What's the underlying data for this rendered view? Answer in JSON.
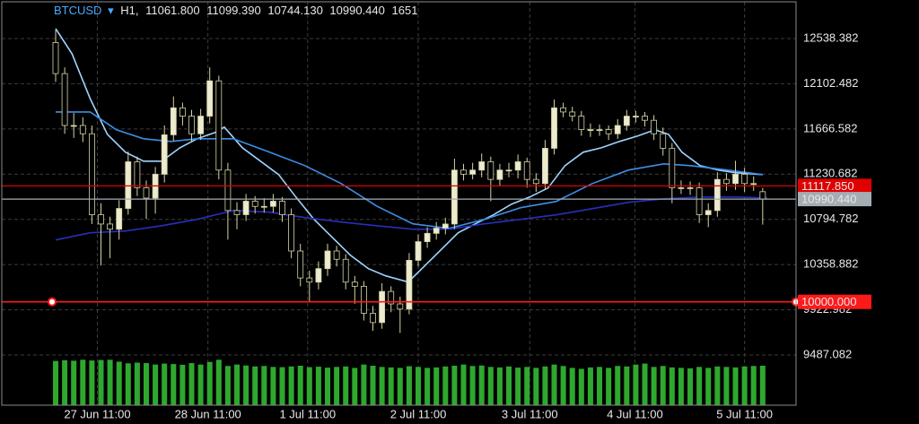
{
  "header": {
    "symbol": "BTCUSD",
    "arrow": "▾",
    "timeframe": "H1,",
    "open": "11061.800",
    "high": "11099.390",
    "low": "10744.130",
    "close": "10990.440",
    "volume": 1651
  },
  "chart_data": {
    "type": "candlestick",
    "xlim": [
      -5.94,
      81.68
    ],
    "ylim": [
      9003.7,
      12892.3
    ],
    "yticks": [
      12538.382,
      12102.482,
      11666.582,
      11230.682,
      10794.782,
      10358.882,
      9922.982,
      9487.082
    ],
    "xticks": [
      {
        "value": 4.6,
        "label": "27 Jun 11:00"
      },
      {
        "value": 16.8,
        "label": "28 Jun 11:00"
      },
      {
        "value": 27.8,
        "label": "1 Jul 11:00"
      },
      {
        "value": 40.0,
        "label": "2 Jul 11:00"
      },
      {
        "value": 52.3,
        "label": "3 Jul 11:00"
      },
      {
        "value": 63.9,
        "label": "4 Jul 11:00"
      },
      {
        "value": 76.0,
        "label": "5 Jul 11:00"
      }
    ],
    "grid": true,
    "candles": {
      "up_color": "#ecebcf",
      "down_color": "#000000",
      "outline_color": "#d6d3a6",
      "open": [
        12500,
        12200,
        11700,
        11700,
        11620,
        10840,
        10750,
        10700,
        10900,
        11350,
        11100,
        11000,
        11230,
        11610,
        11870,
        11790,
        11620,
        11790,
        12130,
        11270,
        10880,
        10840,
        10970,
        10920,
        10920,
        10970,
        10840,
        10490,
        10230,
        10190,
        10320,
        10490,
        10410,
        10190,
        10150,
        9890,
        9800,
        10100,
        9980,
        9930,
        10400,
        10580,
        10660,
        10710,
        10750,
        11270,
        11230,
        11270,
        11350,
        11180,
        11270,
        11270,
        11350,
        11180,
        11140,
        11480,
        11870,
        11830,
        11790,
        11660,
        11660,
        11660,
        11620,
        11700,
        11790,
        11790,
        11750,
        11620,
        11480,
        11100,
        11100,
        11100,
        10840,
        10880,
        11180,
        11140,
        11230,
        11140,
        11061.8
      ],
      "high": [
        12620,
        12260,
        11820,
        11780,
        11700,
        10950,
        10820,
        10980,
        11450,
        11400,
        11170,
        11300,
        11700,
        11980,
        11920,
        11850,
        11860,
        12260,
        12180,
        11340,
        10960,
        11040,
        11020,
        11000,
        11040,
        11010,
        10900,
        10560,
        10300,
        10390,
        10560,
        10540,
        10460,
        10250,
        10200,
        9960,
        10180,
        10150,
        10050,
        10470,
        10650,
        10720,
        10770,
        10810,
        11380,
        11330,
        11340,
        11430,
        11400,
        11330,
        11340,
        11420,
        11390,
        11240,
        11560,
        11950,
        11920,
        11880,
        11840,
        11720,
        11710,
        11700,
        11760,
        11850,
        11840,
        11830,
        11800,
        11680,
        11530,
        11170,
        11160,
        11150,
        10950,
        11250,
        11240,
        11360,
        11290,
        11210,
        11099.39
      ],
      "low": [
        12120,
        11620,
        11580,
        11540,
        10750,
        10350,
        10420,
        10600,
        10840,
        11020,
        10800,
        10850,
        11150,
        11550,
        11700,
        11540,
        11560,
        11720,
        11180,
        10600,
        10700,
        10780,
        10850,
        10860,
        10860,
        10770,
        10420,
        10150,
        10000,
        10120,
        10250,
        10340,
        10120,
        9980,
        9820,
        9720,
        9740,
        9900,
        9700,
        9880,
        10340,
        10520,
        10600,
        10650,
        10700,
        11170,
        11180,
        11200,
        10970,
        11120,
        11200,
        11190,
        11100,
        11060,
        11080,
        11420,
        11780,
        11740,
        11600,
        11590,
        11600,
        11560,
        11570,
        11650,
        11730,
        11690,
        11560,
        11410,
        10950,
        11040,
        11030,
        10760,
        10720,
        10820,
        11070,
        11080,
        11060,
        11070,
        10744.13
      ],
      "close": [
        12200,
        11700,
        11700,
        11620,
        10840,
        10750,
        10700,
        10900,
        11350,
        11100,
        11000,
        11230,
        11610,
        11870,
        11790,
        11620,
        11790,
        12130,
        11270,
        10880,
        10840,
        10970,
        10920,
        10920,
        10970,
        10840,
        10490,
        10230,
        10190,
        10320,
        10490,
        10410,
        10190,
        10150,
        9890,
        9800,
        10100,
        9980,
        9930,
        10400,
        10580,
        10660,
        10710,
        10750,
        11270,
        11230,
        11270,
        11350,
        11180,
        11270,
        11270,
        11350,
        11180,
        11140,
        11480,
        11870,
        11830,
        11790,
        11660,
        11660,
        11660,
        11620,
        11700,
        11790,
        11790,
        11750,
        11620,
        11480,
        11100,
        11100,
        11100,
        10840,
        10880,
        11180,
        11140,
        11230,
        11140,
        11140,
        10990.44
      ]
    },
    "moving_averages": [
      {
        "color": "#9fd4ff",
        "x": [
          0,
          1.8,
          3.8,
          5.7,
          7.7,
          9.7,
          11.7,
          13.7,
          15.6,
          17.6,
          18.6,
          20.6,
          22.6,
          24.6,
          26.5,
          28.5,
          30.5,
          32.5,
          34.5,
          36.4,
          38.9,
          40.4,
          42.4,
          44.4,
          46.3,
          48.3,
          50.3,
          52.3,
          54.3,
          56.2,
          58.2,
          60.2,
          62.2,
          64.2,
          66.1,
          67.6,
          69.1,
          71.1,
          73.1,
          75.0,
          78.0
        ],
        "values": [
          12634,
          12392,
          11960,
          11615,
          11442,
          11356,
          11356,
          11485,
          11572,
          11632,
          11684,
          11485,
          11356,
          11226,
          11010,
          10795,
          10622,
          10450,
          10320,
          10251,
          10191,
          10320,
          10493,
          10665,
          10752,
          10838,
          10942,
          11010,
          11097,
          11313,
          11442,
          11485,
          11546,
          11598,
          11658,
          11615,
          11442,
          11313,
          11270,
          11244,
          11226
        ]
      },
      {
        "color": "#3d8fe6",
        "x": [
          0,
          3.8,
          6.7,
          9.7,
          12.7,
          15.6,
          19.6,
          23.6,
          27.5,
          31.5,
          35.4,
          39.4,
          43.4,
          47.3,
          51.3,
          55.2,
          59.2,
          63.2,
          67.1,
          70.1,
          74.1,
          78.0
        ],
        "values": [
          11830,
          11830,
          11658,
          11572,
          11546,
          11572,
          11572,
          11442,
          11313,
          11140,
          10924,
          10752,
          10708,
          10795,
          10907,
          10967,
          11140,
          11270,
          11330,
          11313,
          11270,
          11226
        ]
      },
      {
        "color": "#2830b8",
        "x": [
          0,
          3.8,
          7.7,
          11.7,
          15.6,
          19.6,
          23.6,
          27.5,
          31.5,
          35.4,
          39.4,
          43.4,
          47.3,
          51.3,
          55.2,
          59.2,
          63.2,
          67.1,
          71.1,
          75.0,
          78.5
        ],
        "values": [
          10596,
          10665,
          10683,
          10734,
          10795,
          10881,
          10864,
          10812,
          10769,
          10734,
          10700,
          10700,
          10752,
          10795,
          10838,
          10898,
          10959,
          10993,
          11010,
          11010,
          11002
        ]
      }
    ],
    "volume": {
      "color": "#2ea82e",
      "ylim": [
        0,
        2100
      ],
      "values": [
        1850,
        1880,
        1860,
        1900,
        1870,
        1890,
        1900,
        1820,
        1750,
        1780,
        1760,
        1700,
        1740,
        1720,
        1690,
        1760,
        1700,
        1810,
        1900,
        1640,
        1700,
        1660,
        1620,
        1640,
        1600,
        1590,
        1620,
        1650,
        1590,
        1610,
        1570,
        1600,
        1620,
        1560,
        1700,
        1650,
        1600,
        1580,
        1560,
        1630,
        1600,
        1560,
        1580,
        1620,
        1650,
        1700,
        1640,
        1660,
        1600,
        1580,
        1620,
        1570,
        1600,
        1560,
        1620,
        1700,
        1640,
        1560,
        1520,
        1580,
        1600,
        1560,
        1640,
        1620,
        1700,
        1740,
        1600,
        1640,
        1580,
        1560,
        1540,
        1600,
        1560,
        1620,
        1600,
        1580,
        1620,
        1640,
        1651
      ]
    },
    "price_lines": [
      {
        "value": 11117.85,
        "label": "11117.850",
        "color": "#e00000",
        "text_color": "#6a0000"
      },
      {
        "value": 10990.44,
        "label": "10990.440",
        "color": "#a3adb3",
        "text_color": "#1a1a1a"
      },
      {
        "value": 10000,
        "label": "10000.000",
        "color": "#ff1a1a",
        "text_color": "#5a0000"
      }
    ]
  }
}
